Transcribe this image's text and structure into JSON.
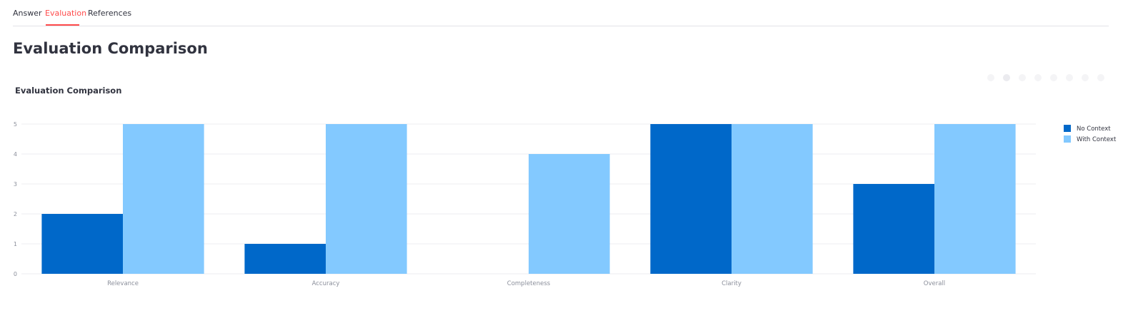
{
  "tabs": [
    {
      "label": "Answer",
      "active": false
    },
    {
      "label": "Evaluation",
      "active": true
    },
    {
      "label": "References",
      "active": false
    }
  ],
  "page_title": "Evaluation Comparison",
  "accent_color": "#ff4b4b",
  "toolbar_icons": [
    "camera-icon",
    "zoom-icon",
    "pan-icon",
    "zoom-in-icon",
    "zoom-out-icon",
    "autoscale-icon",
    "reset-axes-icon",
    "fullscreen-icon"
  ],
  "chart_data": {
    "type": "bar",
    "title": "Evaluation Comparison",
    "xlabel": "",
    "ylabel": "",
    "categories": [
      "Relevance",
      "Accuracy",
      "Completeness",
      "Clarity",
      "Overall"
    ],
    "series": [
      {
        "name": "No Context",
        "values": [
          2,
          1,
          0,
          5,
          3
        ],
        "color": "#0068c9"
      },
      {
        "name": "With Context",
        "values": [
          5,
          5,
          4,
          5,
          5
        ],
        "color": "#83c9ff"
      }
    ],
    "yticks": [
      "0",
      "1",
      "2",
      "3",
      "4",
      "5"
    ],
    "ylim": [
      0,
      5
    ],
    "grid": true,
    "legend_position": "right"
  }
}
